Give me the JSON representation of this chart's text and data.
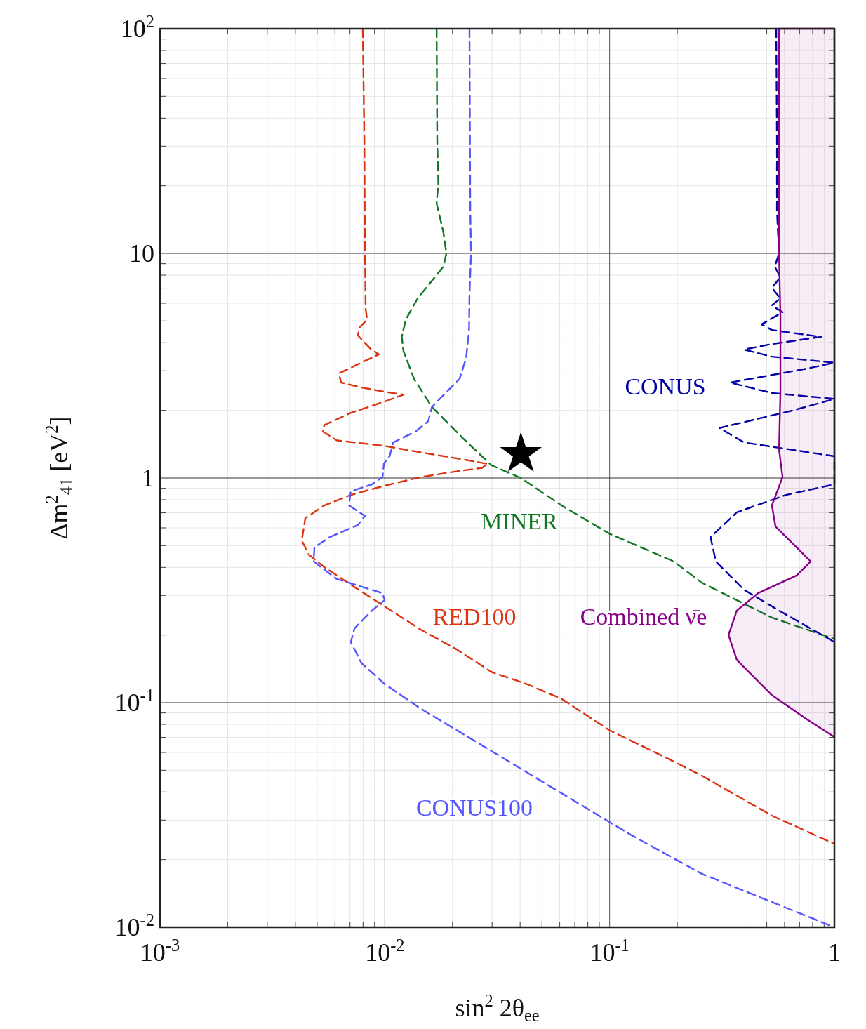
{
  "chart_data": {
    "type": "line",
    "xlabel": "sin$^{2}$ 2θ$_{ee}$",
    "ylabel": "Δm$^{2}$$_{41}$ [eV$^{2}$]",
    "log": "xy",
    "grid": true,
    "line_style": "dashed",
    "xlim": [
      0.001,
      1
    ],
    "ylim": [
      0.01,
      100
    ],
    "xticks": [
      {
        "value": 0.001,
        "label": "10$^{-3}$"
      },
      {
        "value": 0.01,
        "label": "10$^{-2}$"
      },
      {
        "value": 0.1,
        "label": "10$^{-1}$"
      },
      1
    ],
    "yticks": [
      {
        "value": 0.01,
        "label": "10$^{-2}$"
      },
      {
        "value": 0.1,
        "label": "10$^{-1}$"
      },
      1,
      10,
      {
        "value": 100,
        "label": "10$^{2}$"
      }
    ],
    "series": [
      {
        "name": "RED100",
        "color": "#dd3311",
        "line_style": "dashed",
        "x": [
          0.00798,
          0.00811,
          0.00816,
          0.00822,
          0.00834,
          0.0077,
          0.00759,
          0.00864,
          0.00942,
          0.00804,
          0.00625,
          0.00639,
          0.00787,
          0.00998,
          0.0121,
          0.00998,
          0.00706,
          0.00538,
          0.0053,
          0.00612,
          0.00998,
          0.0145,
          0.0223,
          0.0287,
          0.0271,
          0.0208,
          0.0145,
          0.00998,
          0.00706,
          0.00538,
          0.00443,
          0.00427,
          0.00459,
          0.00538,
          0.00706,
          0.0101,
          0.0145,
          0.0208,
          0.0298,
          0.0427,
          0.0611,
          0.0995,
          0.18,
          0.257,
          0.527,
          1
        ],
        "values": [
          100,
          31.9,
          10,
          5.66,
          5.08,
          4.66,
          4.31,
          3.76,
          3.55,
          3.3,
          2.92,
          2.66,
          2.53,
          2.42,
          2.35,
          2.19,
          1.95,
          1.72,
          1.61,
          1.47,
          1.39,
          1.3,
          1.21,
          1.155,
          1.11,
          1.07,
          1.01,
          0.924,
          0.841,
          0.755,
          0.663,
          0.527,
          0.456,
          0.401,
          0.335,
          0.266,
          0.211,
          0.173,
          0.137,
          0.121,
          0.104,
          0.0755,
          0.0566,
          0.0473,
          0.0314,
          0.0235
        ]
      },
      {
        "name": "MINER",
        "color": "#117722",
        "x": [
          0.017,
          0.0171,
          0.0173,
          0.017,
          0.0182,
          0.0188,
          0.0182,
          0.0162,
          0.014,
          0.0124,
          0.0119,
          0.0121,
          0.0135,
          0.0162,
          0.0223,
          0.0298,
          0.0403,
          0.0611,
          0.0995,
          0.193,
          0.257,
          0.527,
          1
        ],
        "values": [
          100,
          31.9,
          20.7,
          16.7,
          12.5,
          10,
          8.73,
          7.55,
          6.31,
          5.08,
          4.25,
          3.68,
          2.76,
          2.07,
          1.5,
          1.14,
          1,
          0.755,
          0.566,
          0.425,
          0.342,
          0.239,
          0.192
        ]
      },
      {
        "name": "CONUS100",
        "color": "#5555ff",
        "line_style": "dashed",
        "x": [
          0.0238,
          0.024,
          0.0242,
          0.0238,
          0.0237,
          0.023,
          0.0215,
          0.018,
          0.0162,
          0.0156,
          0.0137,
          0.0109,
          0.0105,
          0.00991,
          0.00977,
          0.00877,
          0.00706,
          0.00692,
          0.00816,
          0.00759,
          0.0057,
          0.00486,
          0.00483,
          0.00612,
          0.00977,
          0.00998,
          0.00877,
          0.00733,
          0.00706,
          0.00787,
          0.00998,
          0.0145,
          0.0298,
          0.0611,
          0.125,
          0.257,
          1
        ],
        "values": [
          100,
          15.5,
          10,
          6.55,
          4.56,
          3.42,
          2.76,
          2.31,
          2.07,
          1.79,
          1.61,
          1.44,
          1.25,
          1.16,
          1.01,
          0.937,
          0.873,
          0.755,
          0.678,
          0.618,
          0.546,
          0.491,
          0.425,
          0.355,
          0.307,
          0.286,
          0.257,
          0.214,
          0.186,
          0.15,
          0.121,
          0.0938,
          0.0609,
          0.0395,
          0.0257,
          0.0173,
          0.01
        ]
      },
      {
        "name": "CONUS",
        "color": "#0000aa",
        "line_style": "dashed",
        "x": [
          0.551,
          0.555,
          0.555,
          0.567,
          0.543,
          0.575,
          0.527,
          0.575,
          0.527,
          0.588,
          0.474,
          0.527,
          0.873,
          0.527,
          0.396,
          0.527,
          1,
          0.756,
          0.343,
          0.527,
          1,
          0.655,
          0.308,
          0.396,
          1,
          1,
          0.609,
          0.368,
          0.281,
          0.297,
          0.396,
          0.567,
          1
        ],
        "values": [
          100,
          31.9,
          15.5,
          10,
          8.73,
          7.83,
          7.03,
          6.31,
          5.87,
          5.47,
          4.83,
          4.56,
          4.25,
          3.95,
          3.73,
          3.47,
          3.26,
          3.07,
          2.66,
          2.39,
          2.25,
          2,
          1.67,
          1.44,
          1.25,
          0.937,
          0.841,
          0.703,
          0.546,
          0.425,
          0.318,
          0.257,
          0.186
        ]
      },
      {
        "name": "Combined ν̄e",
        "color": "#880088",
        "type": "area",
        "line_style": "solid",
        "x": [
          1,
          0.567,
          0.567,
          0.575,
          0.575,
          0.567,
          0.588,
          0.527,
          0.547,
          0.679,
          0.784,
          0.679,
          0.457,
          0.368,
          0.338,
          0.368,
          0.527,
          0.756,
          1
        ],
        "values": [
          100,
          100,
          10,
          5.27,
          2.39,
          1.34,
          1.01,
          0.755,
          0.608,
          0.491,
          0.425,
          0.368,
          0.307,
          0.257,
          0.2,
          0.155,
          0.108,
          0.0841,
          0.0703
        ]
      },
      {
        "type": "scatter",
        "marker": "star",
        "color": "#000000",
        "x": [
          0.0403
        ],
        "values": [
          1.28
        ]
      }
    ]
  }
}
